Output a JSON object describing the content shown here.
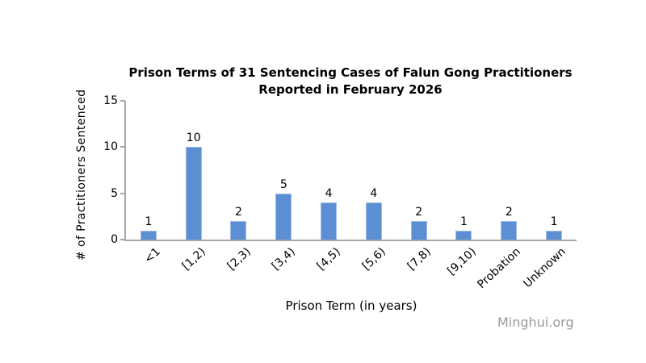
{
  "title": {
    "line1": "Prison Terms of 31 Sentencing Cases of Falun Gong Practitioners",
    "line2": "Reported in February 2026"
  },
  "y_axis": {
    "label": "# of Practitioners Sentenced"
  },
  "x_axis": {
    "label": "Prison Term (in years)"
  },
  "source_text": "Minghui.org",
  "colors": {
    "bar_fill": "#5B8ED3",
    "bar_border": "#9DBCE8",
    "axis": "#A6A6A6",
    "source_text": "#9A9A9A",
    "text": "#000000"
  },
  "chart_data": {
    "type": "bar",
    "title": "Prison Terms of 31 Sentencing Cases of Falun Gong Practitioners Reported in February 2026",
    "categories": [
      "<1",
      "[1,2)",
      "[2,3)",
      "[3,4)",
      "[4,5)",
      "[5,6)",
      "[7,8)",
      "[9,10)",
      "Probation",
      "Unknown"
    ],
    "values": [
      1,
      10,
      2,
      5,
      4,
      4,
      2,
      1,
      2,
      1
    ],
    "xlabel": "Prison Term (in years)",
    "ylabel": "# of Practitioners Sentenced",
    "ylim": [
      0,
      15
    ],
    "yticks": [
      0,
      5,
      10,
      15
    ],
    "grid": false,
    "legend_position": "none",
    "data_labels": true,
    "source": "Minghui.org"
  }
}
